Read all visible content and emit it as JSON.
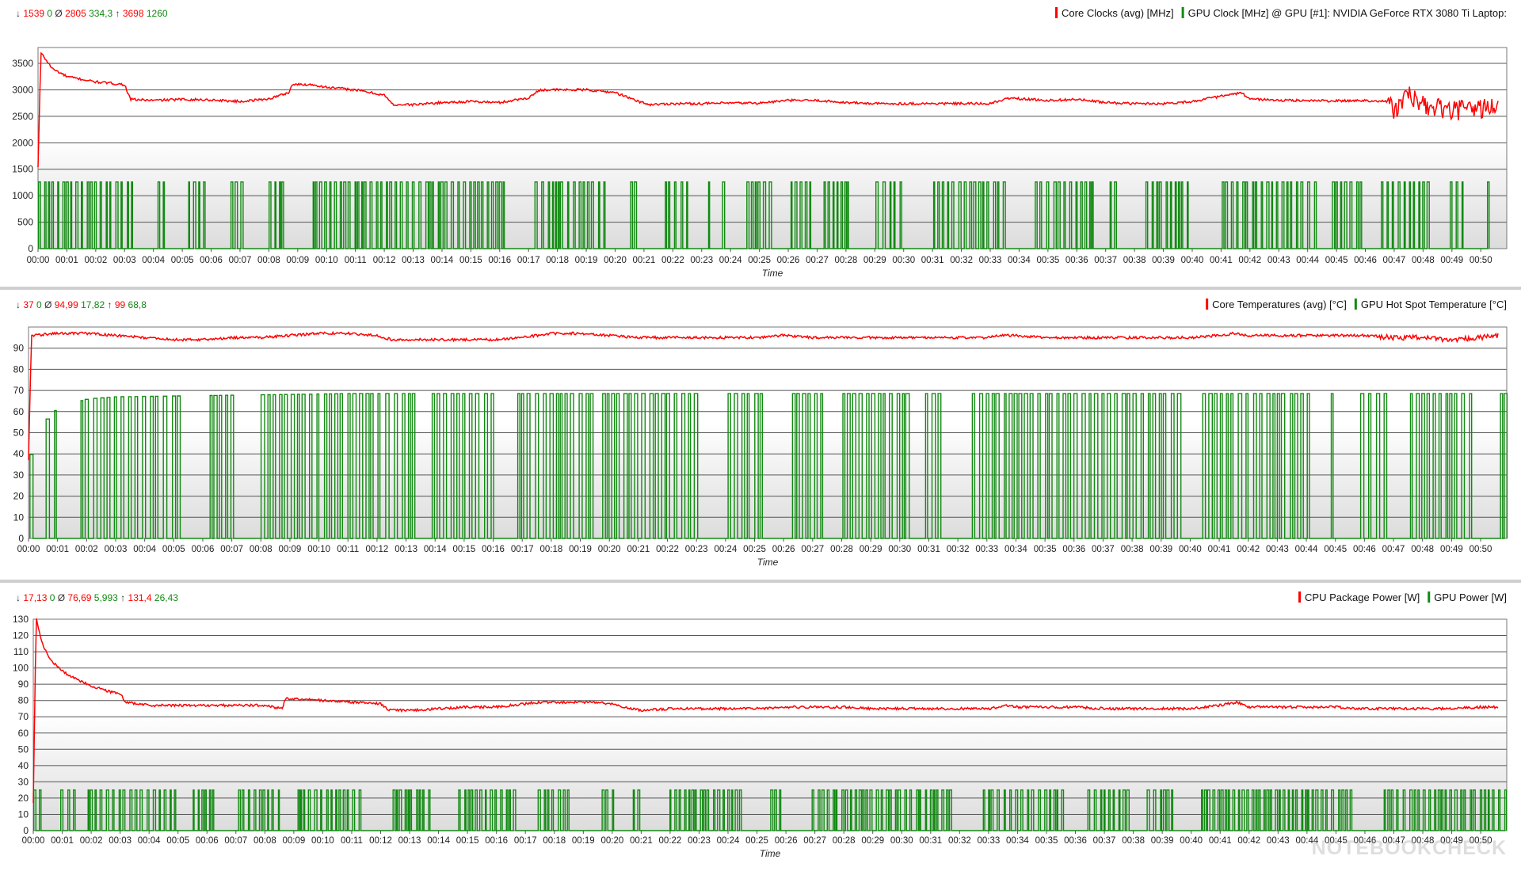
{
  "colors": {
    "red": "#ff0000",
    "green": "#118a11",
    "grid": "#555555",
    "plot_bg_top": "#ffffff",
    "plot_bg_bottom": "#dcdcdc"
  },
  "watermark": "NOTEBOOKCHECK",
  "time_ticks": [
    "00:00",
    "00:01",
    "00:02",
    "00:03",
    "00:04",
    "00:05",
    "00:06",
    "00:07",
    "00:08",
    "00:09",
    "00:10",
    "00:11",
    "00:12",
    "00:13",
    "00:14",
    "00:15",
    "00:16",
    "00:17",
    "00:18",
    "00:19",
    "00:20",
    "00:21",
    "00:22",
    "00:23",
    "00:24",
    "00:25",
    "00:26",
    "00:27",
    "00:28",
    "00:29",
    "00:30",
    "00:31",
    "00:32",
    "00:33",
    "00:34",
    "00:35",
    "00:36",
    "00:37",
    "00:38",
    "00:39",
    "00:40",
    "00:41",
    "00:42",
    "00:43",
    "00:44",
    "00:45",
    "00:46",
    "00:47",
    "00:48",
    "00:49",
    "00:50"
  ],
  "chart_data": [
    {
      "type": "line",
      "xlabel": "Time",
      "ylim": [
        0,
        3800
      ],
      "yticks": [
        0,
        500,
        1000,
        1500,
        2000,
        2500,
        3000,
        3500
      ],
      "stats": {
        "min_sym": "↓",
        "min_red": "1539",
        "min_green": "0",
        "avg_sym": "Ø",
        "avg_red": "2805",
        "avg_green": "334,3",
        "max_sym": "↑",
        "max_red": "3698",
        "max_green": "1260"
      },
      "series": [
        {
          "name": "Core Clocks (avg) [MHz]",
          "color": "#ff0000",
          "anchors": [
            [
              0,
              1539
            ],
            [
              0.1,
              3698
            ],
            [
              0.5,
              3400
            ],
            [
              1,
              3250
            ],
            [
              2,
              3150
            ],
            [
              3,
              3100
            ],
            [
              3.2,
              2820
            ],
            [
              4,
              2800
            ],
            [
              5,
              2820
            ],
            [
              6,
              2810
            ],
            [
              7,
              2780
            ],
            [
              8,
              2830
            ],
            [
              8.7,
              2950
            ],
            [
              8.8,
              3100
            ],
            [
              9.5,
              3100
            ],
            [
              10,
              3050
            ],
            [
              11,
              3000
            ],
            [
              12,
              2900
            ],
            [
              12.3,
              2720
            ],
            [
              13,
              2720
            ],
            [
              14,
              2760
            ],
            [
              15,
              2780
            ],
            [
              16,
              2760
            ],
            [
              17,
              2850
            ],
            [
              17.4,
              3000
            ],
            [
              18,
              3000
            ],
            [
              19,
              3000
            ],
            [
              20,
              2950
            ],
            [
              20.7,
              2800
            ],
            [
              21.2,
              2720
            ],
            [
              22,
              2740
            ],
            [
              23,
              2740
            ],
            [
              24,
              2750
            ],
            [
              25,
              2750
            ],
            [
              26,
              2800
            ],
            [
              27,
              2800
            ],
            [
              28,
              2760
            ],
            [
              29,
              2740
            ],
            [
              30,
              2740
            ],
            [
              31,
              2740
            ],
            [
              32,
              2740
            ],
            [
              33,
              2740
            ],
            [
              33.7,
              2850
            ],
            [
              34,
              2830
            ],
            [
              35,
              2800
            ],
            [
              36,
              2820
            ],
            [
              37,
              2760
            ],
            [
              38,
              2740
            ],
            [
              39,
              2740
            ],
            [
              40,
              2780
            ],
            [
              41,
              2880
            ],
            [
              41.7,
              2940
            ],
            [
              42,
              2830
            ],
            [
              43,
              2800
            ],
            [
              44,
              2800
            ],
            [
              45,
              2790
            ],
            [
              46,
              2800
            ],
            [
              46.8,
              2780
            ],
            [
              47,
              2600
            ],
            [
              47.5,
              2900
            ],
            [
              48,
              2700
            ],
            [
              49,
              2600
            ],
            [
              50,
              2650
            ],
            [
              50.6,
              2700
            ]
          ]
        },
        {
          "name": "GPU Clock [MHz] @ GPU [#1]: NVIDIA GeForce RTX 3080 Ti Laptop:",
          "color": "#118a11",
          "pulse_high": 1260,
          "pulse_low": 0
        }
      ]
    },
    {
      "type": "line",
      "xlabel": "Time",
      "ylim": [
        0,
        100
      ],
      "yticks": [
        0,
        10,
        20,
        30,
        40,
        50,
        60,
        70,
        80,
        90
      ],
      "stats": {
        "min_sym": "↓",
        "min_red": "37",
        "min_green": "0",
        "avg_sym": "Ø",
        "avg_red": "94,99",
        "avg_green": "17,82",
        "max_sym": "↑",
        "max_red": "99",
        "max_green": "68,8"
      },
      "series": [
        {
          "name": "Core Temperatures (avg) [°C]",
          "color": "#ff0000",
          "anchors": [
            [
              0,
              37
            ],
            [
              0.1,
              96
            ],
            [
              1,
              97
            ],
            [
              2,
              97
            ],
            [
              3,
              96
            ],
            [
              4,
              95
            ],
            [
              5,
              94
            ],
            [
              6,
              94
            ],
            [
              7,
              95
            ],
            [
              8,
              95
            ],
            [
              9,
              96
            ],
            [
              10,
              97
            ],
            [
              11,
              97
            ],
            [
              12,
              96
            ],
            [
              12.5,
              94
            ],
            [
              14,
              94
            ],
            [
              15,
              94
            ],
            [
              16,
              94
            ],
            [
              17,
              95
            ],
            [
              18,
              97
            ],
            [
              19,
              97
            ],
            [
              20,
              96
            ],
            [
              21,
              95
            ],
            [
              22,
              95
            ],
            [
              23,
              95
            ],
            [
              24,
              95
            ],
            [
              25,
              95
            ],
            [
              26,
              96
            ],
            [
              27,
              95
            ],
            [
              28,
              95
            ],
            [
              29,
              95
            ],
            [
              30,
              95
            ],
            [
              31,
              95
            ],
            [
              32,
              95
            ],
            [
              33,
              95
            ],
            [
              33.5,
              96
            ],
            [
              34,
              96
            ],
            [
              35,
              95
            ],
            [
              36,
              95
            ],
            [
              37,
              95
            ],
            [
              38,
              95
            ],
            [
              39,
              95
            ],
            [
              40,
              95
            ],
            [
              41,
              96
            ],
            [
              41.5,
              97
            ],
            [
              42,
              96
            ],
            [
              43,
              96
            ],
            [
              44,
              96
            ],
            [
              45,
              96
            ],
            [
              46,
              96
            ],
            [
              47,
              95
            ],
            [
              48,
              95
            ],
            [
              49,
              94
            ],
            [
              50,
              95
            ],
            [
              50.6,
              96
            ]
          ]
        },
        {
          "name": "GPU Hot Spot Temperature [°C]",
          "color": "#118a11",
          "pulse_high": 68,
          "pulse_low": 0,
          "warmup": [
            [
              0,
              38
            ],
            [
              0.5,
              55
            ],
            [
              1,
              62
            ],
            [
              2,
              66
            ],
            [
              3,
              67
            ],
            [
              11,
              68.5
            ]
          ]
        }
      ]
    },
    {
      "type": "line",
      "xlabel": "Time",
      "ylim": [
        0,
        130
      ],
      "yticks": [
        0,
        10,
        20,
        30,
        40,
        50,
        60,
        70,
        80,
        90,
        100,
        110,
        120,
        130
      ],
      "stats": {
        "min_sym": "↓",
        "min_red": "17,13",
        "min_green": "0",
        "avg_sym": "Ø",
        "avg_red": "76,69",
        "avg_green": "5,993",
        "max_sym": "↑",
        "max_red": "131,4",
        "max_green": "26,43"
      },
      "series": [
        {
          "name": "CPU Package Power [W]",
          "color": "#ff0000",
          "anchors": [
            [
              0,
              17
            ],
            [
              0.1,
              131
            ],
            [
              0.3,
              115
            ],
            [
              0.6,
              105
            ],
            [
              1,
              98
            ],
            [
              1.5,
              93
            ],
            [
              2,
              89
            ],
            [
              2.5,
              86
            ],
            [
              3,
              84
            ],
            [
              3.2,
              79
            ],
            [
              4,
              77
            ],
            [
              5,
              77
            ],
            [
              6,
              77
            ],
            [
              7,
              77
            ],
            [
              8,
              77
            ],
            [
              8.6,
              75
            ],
            [
              8.7,
              81
            ],
            [
              9,
              81
            ],
            [
              10,
              80
            ],
            [
              11,
              79
            ],
            [
              12,
              78
            ],
            [
              12.3,
              74
            ],
            [
              13,
              74
            ],
            [
              14,
              75
            ],
            [
              15,
              76
            ],
            [
              16,
              76
            ],
            [
              17,
              78
            ],
            [
              17.5,
              79
            ],
            [
              18,
              79
            ],
            [
              19,
              79
            ],
            [
              20,
              78
            ],
            [
              20.3,
              76
            ],
            [
              21,
              74
            ],
            [
              22,
              75
            ],
            [
              23,
              75
            ],
            [
              24,
              75
            ],
            [
              25,
              75
            ],
            [
              26,
              76
            ],
            [
              27,
              76
            ],
            [
              28,
              76
            ],
            [
              29,
              75
            ],
            [
              30,
              75
            ],
            [
              31,
              75
            ],
            [
              32,
              75
            ],
            [
              33,
              75
            ],
            [
              33.7,
              77
            ],
            [
              34,
              76
            ],
            [
              35,
              76
            ],
            [
              36,
              76
            ],
            [
              37,
              75
            ],
            [
              38,
              75
            ],
            [
              39,
              75
            ],
            [
              40,
              75
            ],
            [
              41,
              77
            ],
            [
              41.6,
              79
            ],
            [
              42,
              76
            ],
            [
              43,
              76
            ],
            [
              44,
              76
            ],
            [
              45,
              76
            ],
            [
              46,
              75
            ],
            [
              47,
              75
            ],
            [
              48,
              75
            ],
            [
              49,
              75
            ],
            [
              50,
              76
            ],
            [
              50.6,
              76
            ]
          ]
        },
        {
          "name": "GPU Power [W]",
          "color": "#118a11",
          "pulse_high": 25,
          "pulse_low": 0
        }
      ]
    }
  ]
}
